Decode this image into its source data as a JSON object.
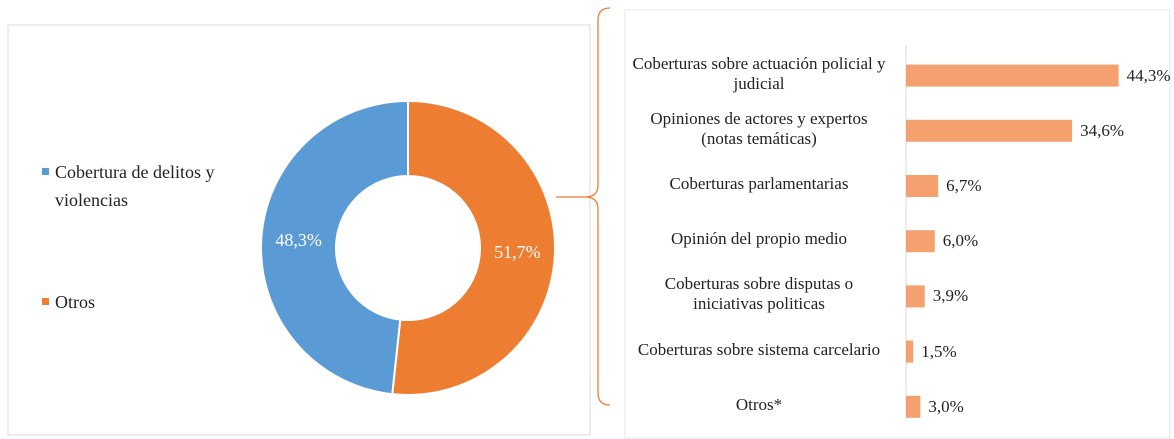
{
  "chart_data": [
    {
      "type": "donut",
      "categories": [
        "Cobertura de delitos y violencias",
        "Otros"
      ],
      "values": [
        48.3,
        51.7
      ],
      "value_labels": [
        "48,3%",
        "51,7%"
      ],
      "colors": [
        "#5b9bd5",
        "#ed7d31"
      ]
    },
    {
      "type": "hbar",
      "categories": [
        "Coberturas sobre actuación policial y judicial",
        "Opiniones de actores y expertos (notas temáticas)",
        "Coberturas parlamentarias",
        "Opinión del propio medio",
        "Coberturas sobre disputas o iniciativas politicas",
        "Coberturas sobre sistema carcelario",
        "Otros*"
      ],
      "values": [
        44.3,
        34.6,
        6.7,
        6.0,
        3.9,
        1.5,
        3.0
      ],
      "value_labels": [
        "44,3%",
        "34,6%",
        "6,7%",
        "6,0%",
        "3,9%",
        "1,5%",
        "3,0%"
      ],
      "color": "#f4a06f",
      "xlim": [
        0,
        50
      ]
    }
  ]
}
